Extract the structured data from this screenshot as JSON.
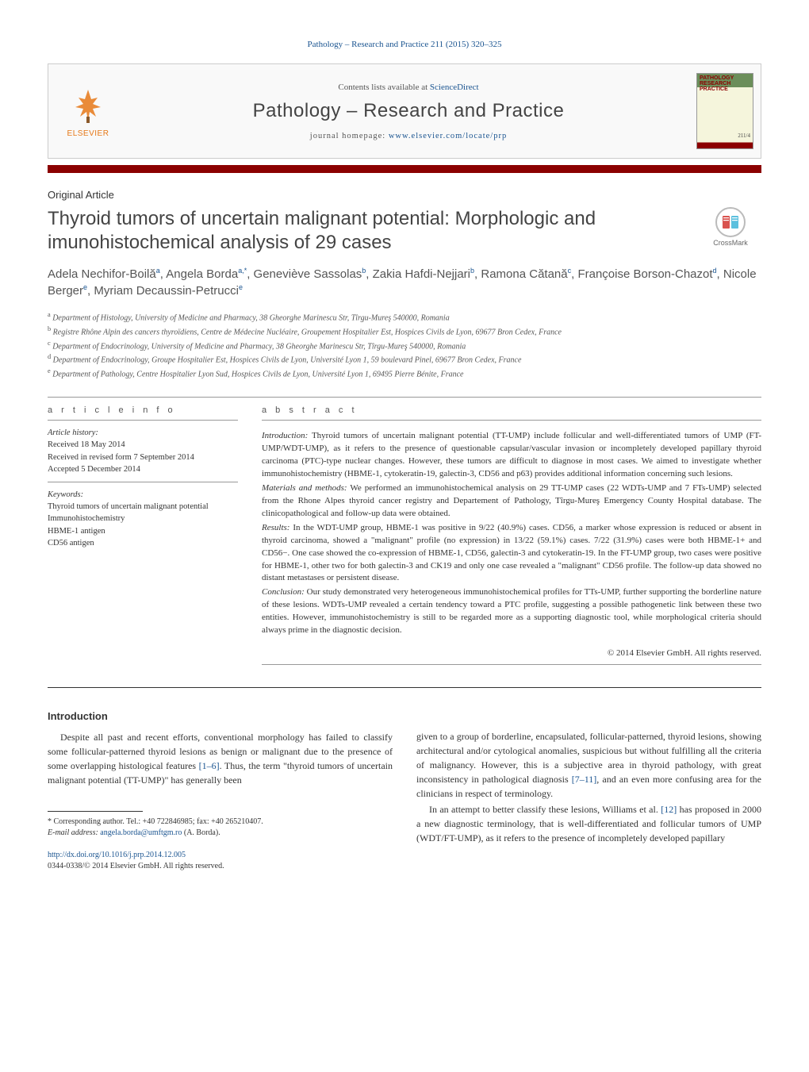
{
  "running_head": "Pathology – Research and Practice 211 (2015) 320–325",
  "banner": {
    "contents_prefix": "Contents lists available at ",
    "contents_link": "ScienceDirect",
    "journal_title": "Pathology – Research and Practice",
    "homepage_prefix": "journal homepage: ",
    "homepage_url": "www.elsevier.com/locate/prp",
    "elsevier_label": "ELSEVIER",
    "cover_title": "PATHOLOGY",
    "cover_sub1": "RESEARCH",
    "cover_sub2": "PRACTICE",
    "cover_vol": "211/4"
  },
  "article_type": "Original Article",
  "title": "Thyroid tumors of uncertain malignant potential: Morphologic and imunohistochemical analysis of 29 cases",
  "crossmark_label": "CrossMark",
  "authors_html": "Adela Nechifor-Boilă<sup>a</sup>, Angela Borda<sup>a,*</sup>, Geneviève Sassolas<sup>b</sup>, Zakia Hafdi-Nejjari<sup>b</sup>, Ramona Cătană<sup>c</sup>, Françoise Borson-Chazot<sup>d</sup>, Nicole Berger<sup>e</sup>, Myriam Decaussin-Petrucci<sup>e</sup>",
  "affiliations": [
    "a Department of Histology, University of Medicine and Pharmacy, 38 Gheorghe Marinescu Str, Tîrgu-Mureş 540000, Romania",
    "b Registre Rhône Alpin des cancers thyroïdiens, Centre de Médecine Nucléaire, Groupement Hospitalier Est, Hospices Civils de Lyon, 69677 Bron Cedex, France",
    "c Department of Endocrinology, University of Medicine and Pharmacy, 38 Gheorghe Marinescu Str, Tîrgu-Mureş 540000, Romania",
    "d Department of Endocrinology, Groupe Hospitalier Est, Hospices Civils de Lyon, Université Lyon 1, 59 boulevard Pinel, 69677 Bron Cedex, France",
    "e Department of Pathology, Centre Hospitalier Lyon Sud, Hospices Civils de Lyon, Université Lyon 1, 69495 Pierre Bénite, France"
  ],
  "article_info_label": "a r t i c l e   i n f o",
  "abstract_label": "a b s t r a c t",
  "history": {
    "heading": "Article history:",
    "received": "Received 18 May 2014",
    "revised": "Received in revised form 7 September 2014",
    "accepted": "Accepted 5 December 2014"
  },
  "keywords": {
    "heading": "Keywords:",
    "items": [
      "Thyroid tumors of uncertain malignant potential",
      "Immunohistochemistry",
      "HBME-1 antigen",
      "CD56 antigen"
    ]
  },
  "abstract": {
    "p1_label": "Introduction:",
    "p1": " Thyroid tumors of uncertain malignant potential (TT-UMP) include follicular and well-differentiated tumors of UMP (FT-UMP/WDT-UMP), as it refers to the presence of questionable capsular/vascular invasion or incompletely developed papillary thyroid carcinoma (PTC)-type nuclear changes. However, these tumors are difficult to diagnose in most cases. We aimed to investigate whether immunohistochemistry (HBME-1, cytokeratin-19, galectin-3, CD56 and p63) provides additional information concerning such lesions.",
    "p2_label": "Materials and methods:",
    "p2": " We performed an immunohistochemical analysis on 29 TT-UMP cases (22 WDTs-UMP and 7 FTs-UMP) selected from the Rhone Alpes thyroid cancer registry and Departement of Pathology, Tîrgu-Mureş Emergency County Hospital database. The clinicopathological and follow-up data were obtained.",
    "p3_label": "Results:",
    "p3": " In the WDT-UMP group, HBME-1 was positive in 9/22 (40.9%) cases. CD56, a marker whose expression is reduced or absent in thyroid carcinoma, showed a \"malignant\" profile (no expression) in 13/22 (59.1%) cases. 7/22 (31.9%) cases were both HBME-1+ and CD56−. One case showed the co-expression of HBME-1, CD56, galectin-3 and cytokeratin-19. In the FT-UMP group, two cases were positive for HBME-1, other two for both galectin-3 and CK19 and only one case revealed a \"malignant\" CD56 profile. The follow-up data showed no distant metastases or persistent disease.",
    "p4_label": "Conclusion:",
    "p4": " Our study demonstrated very heterogeneous immunohistochemical profiles for TTs-UMP, further supporting the borderline nature of these lesions. WDTs-UMP revealed a certain tendency toward a PTC profile, suggesting a possible pathogenetic link between these two entities. However, immunohistochemistry is still to be regarded more as a supporting diagnostic tool, while morphological criteria should always prime in the diagnostic decision."
  },
  "copyright": "© 2014 Elsevier GmbH. All rights reserved.",
  "intro": {
    "heading": "Introduction",
    "col1_p1_pre": "Despite all past and recent efforts, conventional morphology has failed to classify some follicular-patterned thyroid lesions as benign or malignant due to the presence of some overlapping histological features ",
    "col1_p1_ref": "[1–6]",
    "col1_p1_post": ". Thus, the term \"thyroid tumors of uncertain malignant potential (TT-UMP)\" has generally been",
    "col2_p1_pre": "given to a group of borderline, encapsulated, follicular-patterned, thyroid lesions, showing architectural and/or cytological anomalies, suspicious but without fulfilling all the criteria of malignancy. However, this is a subjective area in thyroid pathology, with great inconsistency in pathological diagnosis ",
    "col2_p1_ref": "[7–11]",
    "col2_p1_post": ", and an even more confusing area for the clinicians in respect of terminology.",
    "col2_p2_pre": "In an attempt to better classify these lesions, Williams et al. ",
    "col2_p2_ref": "[12]",
    "col2_p2_post": " has proposed in 2000 a new diagnostic terminology, that is well-differentiated and follicular tumors of UMP (WDT/FT-UMP), as it refers to the presence of incompletely developed papillary"
  },
  "footnotes": {
    "corresponding": "* Corresponding author. Tel.: +40 722846985; fax: +40 265210407.",
    "email_label": "E-mail address: ",
    "email": "angela.borda@umftgm.ro",
    "email_who": " (A. Borda)."
  },
  "doi": {
    "url": "http://dx.doi.org/10.1016/j.prp.2014.12.005",
    "issn_line": "0344-0338/© 2014 Elsevier GmbH. All rights reserved."
  },
  "colors": {
    "link": "#1a5490",
    "red_bar": "#8b0000",
    "orange": "#e67817"
  }
}
